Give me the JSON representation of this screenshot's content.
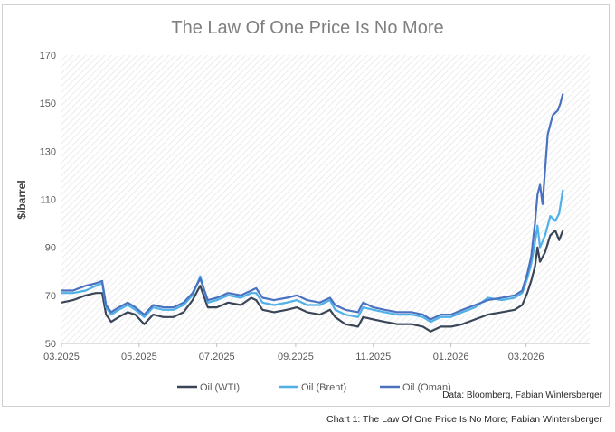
{
  "chart_data": {
    "type": "line",
    "title": "The Law Of One Price Is No More",
    "ylabel": "$/barrel",
    "xlabel": "",
    "ylim": [
      50,
      170
    ],
    "yticks": [
      50,
      70,
      90,
      110,
      130,
      150,
      170
    ],
    "x_range": [
      "2025-03-01",
      "2026-04-20"
    ],
    "xticks": [
      {
        "date": "2025-03-01",
        "label": "03.2025"
      },
      {
        "date": "2025-05-01",
        "label": "05.2025"
      },
      {
        "date": "2025-07-01",
        "label": "07.2025"
      },
      {
        "date": "2025-09-01",
        "label": "09.2025"
      },
      {
        "date": "2025-11-01",
        "label": "11.2025"
      },
      {
        "date": "2026-01-01",
        "label": "01.2026"
      },
      {
        "date": "2026-03-01",
        "label": "03.2026"
      }
    ],
    "grid": false,
    "plot_background": "diagonal hatch",
    "legend_position": "bottom",
    "series": [
      {
        "name": "Oil (WTI)",
        "color": "#3a4658",
        "points": [
          [
            "2025-03-01",
            67
          ],
          [
            "2025-03-10",
            68
          ],
          [
            "2025-03-20",
            70
          ],
          [
            "2025-03-28",
            71
          ],
          [
            "2025-04-02",
            71
          ],
          [
            "2025-04-05",
            62
          ],
          [
            "2025-04-09",
            59
          ],
          [
            "2025-04-15",
            61
          ],
          [
            "2025-04-22",
            63
          ],
          [
            "2025-04-28",
            62
          ],
          [
            "2025-05-05",
            58
          ],
          [
            "2025-05-12",
            62
          ],
          [
            "2025-05-20",
            61
          ],
          [
            "2025-05-28",
            61
          ],
          [
            "2025-06-05",
            63
          ],
          [
            "2025-06-12",
            68
          ],
          [
            "2025-06-18",
            74
          ],
          [
            "2025-06-24",
            65
          ],
          [
            "2025-07-01",
            65
          ],
          [
            "2025-07-10",
            67
          ],
          [
            "2025-07-20",
            66
          ],
          [
            "2025-07-28",
            69
          ],
          [
            "2025-08-01",
            68
          ],
          [
            "2025-08-06",
            64
          ],
          [
            "2025-08-15",
            63
          ],
          [
            "2025-08-25",
            64
          ],
          [
            "2025-09-02",
            65
          ],
          [
            "2025-09-10",
            63
          ],
          [
            "2025-09-20",
            62
          ],
          [
            "2025-09-28",
            64
          ],
          [
            "2025-10-02",
            61
          ],
          [
            "2025-10-10",
            58
          ],
          [
            "2025-10-20",
            57
          ],
          [
            "2025-10-24",
            61
          ],
          [
            "2025-11-01",
            60
          ],
          [
            "2025-11-10",
            59
          ],
          [
            "2025-11-20",
            58
          ],
          [
            "2025-12-01",
            58
          ],
          [
            "2025-12-10",
            57
          ],
          [
            "2025-12-16",
            55
          ],
          [
            "2025-12-24",
            57
          ],
          [
            "2026-01-01",
            57
          ],
          [
            "2026-01-10",
            58
          ],
          [
            "2026-01-20",
            60
          ],
          [
            "2026-01-30",
            62
          ],
          [
            "2026-02-10",
            63
          ],
          [
            "2026-02-20",
            64
          ],
          [
            "2026-02-26",
            66
          ],
          [
            "2026-03-02",
            71
          ],
          [
            "2026-03-05",
            76
          ],
          [
            "2026-03-08",
            82
          ],
          [
            "2026-03-10",
            90
          ],
          [
            "2026-03-12",
            84
          ],
          [
            "2026-03-16",
            88
          ],
          [
            "2026-03-20",
            95
          ],
          [
            "2026-03-24",
            97
          ],
          [
            "2026-03-27",
            93
          ],
          [
            "2026-03-30",
            97
          ]
        ]
      },
      {
        "name": "Oil (Brent)",
        "color": "#4fb0e8",
        "points": [
          [
            "2025-03-01",
            71
          ],
          [
            "2025-03-10",
            71
          ],
          [
            "2025-03-20",
            72
          ],
          [
            "2025-03-28",
            74
          ],
          [
            "2025-04-02",
            75
          ],
          [
            "2025-04-05",
            65
          ],
          [
            "2025-04-09",
            62
          ],
          [
            "2025-04-15",
            64
          ],
          [
            "2025-04-22",
            66
          ],
          [
            "2025-04-28",
            64
          ],
          [
            "2025-05-05",
            61
          ],
          [
            "2025-05-12",
            65
          ],
          [
            "2025-05-20",
            64
          ],
          [
            "2025-05-28",
            64
          ],
          [
            "2025-06-05",
            66
          ],
          [
            "2025-06-12",
            70
          ],
          [
            "2025-06-18",
            78
          ],
          [
            "2025-06-24",
            67
          ],
          [
            "2025-07-01",
            68
          ],
          [
            "2025-07-10",
            70
          ],
          [
            "2025-07-20",
            69
          ],
          [
            "2025-07-28",
            71
          ],
          [
            "2025-08-01",
            71
          ],
          [
            "2025-08-06",
            67
          ],
          [
            "2025-08-15",
            66
          ],
          [
            "2025-08-25",
            67
          ],
          [
            "2025-09-02",
            68
          ],
          [
            "2025-09-10",
            66
          ],
          [
            "2025-09-20",
            66
          ],
          [
            "2025-09-28",
            68
          ],
          [
            "2025-10-02",
            64
          ],
          [
            "2025-10-10",
            62
          ],
          [
            "2025-10-20",
            61
          ],
          [
            "2025-10-24",
            65
          ],
          [
            "2025-11-01",
            64
          ],
          [
            "2025-11-10",
            63
          ],
          [
            "2025-11-20",
            62
          ],
          [
            "2025-12-01",
            62
          ],
          [
            "2025-12-10",
            61
          ],
          [
            "2025-12-16",
            59
          ],
          [
            "2025-12-24",
            61
          ],
          [
            "2026-01-01",
            61
          ],
          [
            "2026-01-10",
            63
          ],
          [
            "2026-01-20",
            65
          ],
          [
            "2026-01-30",
            69
          ],
          [
            "2026-02-10",
            68
          ],
          [
            "2026-02-20",
            69
          ],
          [
            "2026-02-26",
            71
          ],
          [
            "2026-03-02",
            77
          ],
          [
            "2026-03-05",
            83
          ],
          [
            "2026-03-08",
            92
          ],
          [
            "2026-03-10",
            99
          ],
          [
            "2026-03-12",
            90
          ],
          [
            "2026-03-16",
            95
          ],
          [
            "2026-03-20",
            103
          ],
          [
            "2026-03-24",
            101
          ],
          [
            "2026-03-27",
            104
          ],
          [
            "2026-03-30",
            114
          ]
        ]
      },
      {
        "name": "Oil (Oman)",
        "color": "#4a72c0",
        "points": [
          [
            "2025-03-01",
            72
          ],
          [
            "2025-03-10",
            72
          ],
          [
            "2025-03-20",
            74
          ],
          [
            "2025-03-28",
            75
          ],
          [
            "2025-04-02",
            76
          ],
          [
            "2025-04-05",
            66
          ],
          [
            "2025-04-09",
            63
          ],
          [
            "2025-04-15",
            65
          ],
          [
            "2025-04-22",
            67
          ],
          [
            "2025-04-28",
            65
          ],
          [
            "2025-05-05",
            62
          ],
          [
            "2025-05-12",
            66
          ],
          [
            "2025-05-20",
            65
          ],
          [
            "2025-05-28",
            65
          ],
          [
            "2025-06-05",
            67
          ],
          [
            "2025-06-12",
            71
          ],
          [
            "2025-06-18",
            77
          ],
          [
            "2025-06-24",
            68
          ],
          [
            "2025-07-01",
            69
          ],
          [
            "2025-07-10",
            71
          ],
          [
            "2025-07-20",
            70
          ],
          [
            "2025-07-28",
            72
          ],
          [
            "2025-08-01",
            73
          ],
          [
            "2025-08-06",
            69
          ],
          [
            "2025-08-15",
            68
          ],
          [
            "2025-08-25",
            69
          ],
          [
            "2025-09-02",
            70
          ],
          [
            "2025-09-10",
            68
          ],
          [
            "2025-09-20",
            67
          ],
          [
            "2025-09-28",
            69
          ],
          [
            "2025-10-02",
            66
          ],
          [
            "2025-10-10",
            64
          ],
          [
            "2025-10-20",
            63
          ],
          [
            "2025-10-24",
            67
          ],
          [
            "2025-11-01",
            65
          ],
          [
            "2025-11-10",
            64
          ],
          [
            "2025-11-20",
            63
          ],
          [
            "2025-12-01",
            63
          ],
          [
            "2025-12-10",
            62
          ],
          [
            "2025-12-16",
            60
          ],
          [
            "2025-12-24",
            62
          ],
          [
            "2026-01-01",
            62
          ],
          [
            "2026-01-10",
            64
          ],
          [
            "2026-01-20",
            66
          ],
          [
            "2026-01-30",
            68
          ],
          [
            "2026-02-10",
            69
          ],
          [
            "2026-02-20",
            70
          ],
          [
            "2026-02-26",
            72
          ],
          [
            "2026-03-02",
            79
          ],
          [
            "2026-03-05",
            86
          ],
          [
            "2026-03-08",
            100
          ],
          [
            "2026-03-10",
            112
          ],
          [
            "2026-03-12",
            116
          ],
          [
            "2026-03-14",
            108
          ],
          [
            "2026-03-18",
            137
          ],
          [
            "2026-03-22",
            145
          ],
          [
            "2026-03-26",
            147
          ],
          [
            "2026-03-28",
            150
          ],
          [
            "2026-03-30",
            154
          ]
        ]
      }
    ],
    "source_note": "Data: Bloomberg, Fabian Wintersberger"
  },
  "caption": "Chart 1: The Law Of One Price Is No More; Fabian Wintersberger"
}
